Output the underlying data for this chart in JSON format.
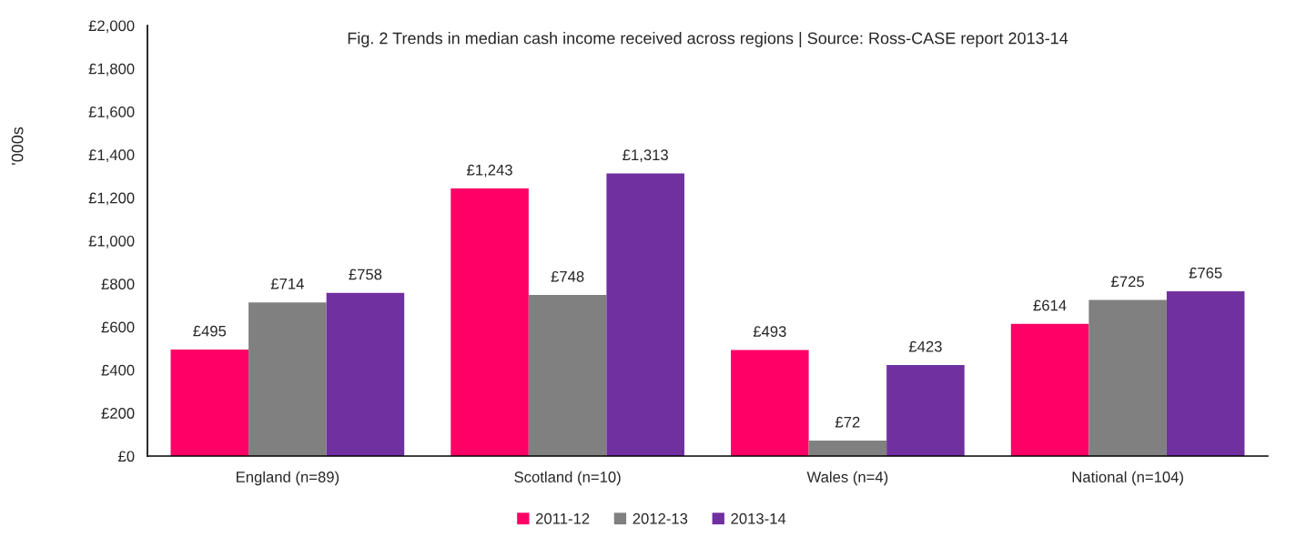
{
  "chart_data": {
    "type": "bar",
    "title": "Fig. 2 Trends in median cash income received across regions | Source: Ross-CASE report 2013-14",
    "ylabel": "'000s",
    "categories": [
      "England (n=89)",
      "Scotland (n=10)",
      "Wales (n=4)",
      "National (n=104)"
    ],
    "series": [
      {
        "name": "2011-12",
        "color": "#ff0066",
        "values": [
          495,
          1243,
          493,
          614
        ],
        "value_labels": [
          "£495",
          "£1,243",
          "£493",
          "£614"
        ]
      },
      {
        "name": "2012-13",
        "color": "#808080",
        "values": [
          714,
          748,
          72,
          725
        ],
        "value_labels": [
          "£714",
          "£748",
          "£72",
          "£725"
        ]
      },
      {
        "name": "2013-14",
        "color": "#7030a0",
        "values": [
          758,
          1313,
          423,
          765
        ],
        "value_labels": [
          "£758",
          "£1,313",
          "£423",
          "£765"
        ]
      }
    ],
    "ylim": [
      0,
      2000
    ],
    "yticks": [
      {
        "value": 0,
        "label": "£0"
      },
      {
        "value": 200,
        "label": "£200"
      },
      {
        "value": 400,
        "label": "£400"
      },
      {
        "value": 600,
        "label": "£600"
      },
      {
        "value": 800,
        "label": "£800"
      },
      {
        "value": 1000,
        "label": "£1,000"
      },
      {
        "value": 1200,
        "label": "£1,200"
      },
      {
        "value": 1400,
        "label": "£1,400"
      },
      {
        "value": 1600,
        "label": "£1,600"
      },
      {
        "value": 1800,
        "label": "£1,800"
      },
      {
        "value": 2000,
        "label": "£2,000"
      }
    ],
    "legend": "bottom"
  }
}
